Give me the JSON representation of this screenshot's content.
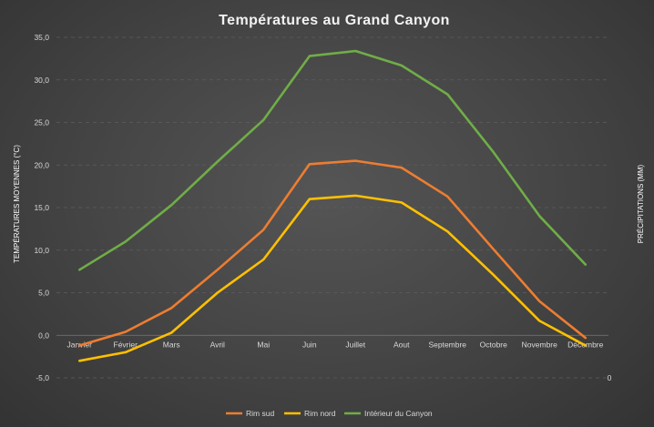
{
  "chart_data": {
    "type": "line",
    "title": "Températures au Grand Canyon",
    "ylabel": "TEMPÉRATURES MOYENNES (°C)",
    "y2label": "PRÉCIPITATIONS (MM)",
    "y2ticks": [
      "0"
    ],
    "ylim": [
      -5,
      35
    ],
    "yticks": [
      "-5,0",
      "0,0",
      "5,0",
      "10,0",
      "15,0",
      "20,0",
      "25,0",
      "30,0",
      "35,0"
    ],
    "categories": [
      "Janvier",
      "Février",
      "Mars",
      "Avril",
      "Mai",
      "Juin",
      "Juillet",
      "Aout",
      "Septembre",
      "Octobre",
      "Novembre",
      "Décembre"
    ],
    "series": [
      {
        "name": "Rim sud",
        "color": "#ed7d31",
        "values": [
          -1.2,
          0.4,
          3.2,
          7.7,
          12.4,
          20.1,
          20.5,
          19.7,
          16.3,
          10.1,
          4.0,
          -0.3
        ]
      },
      {
        "name": "Rim nord",
        "color": "#ffc000",
        "values": [
          -3.0,
          -2.0,
          0.3,
          5.0,
          8.9,
          16.0,
          16.4,
          15.6,
          12.2,
          7.1,
          1.7,
          -1.2
        ]
      },
      {
        "name": "Intérieur du Canyon",
        "color": "#70ad47",
        "values": [
          7.7,
          11.0,
          15.3,
          20.4,
          25.3,
          32.8,
          33.4,
          31.7,
          28.3,
          21.5,
          14.0,
          8.3
        ]
      }
    ],
    "grid": true,
    "legend": "bottom"
  }
}
